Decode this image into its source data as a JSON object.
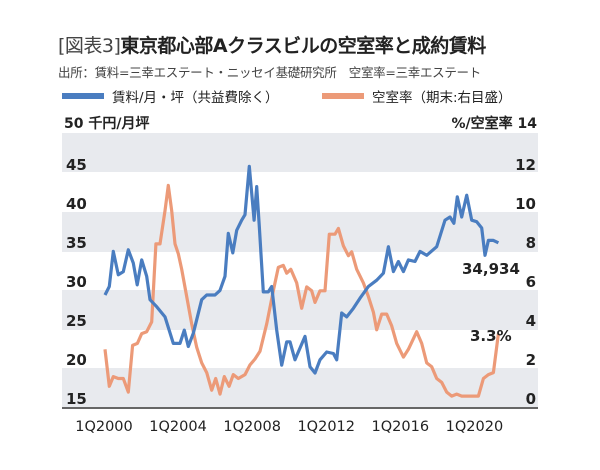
{
  "title_prefix": "[図表3]",
  "title": "東京都心部Aクラスビルの空室率と成約賃料",
  "source": "出所：賃料=三幸エステート・ニッセイ基礎研究所　空室率=三幸エステート",
  "chart_data": {
    "type": "line",
    "title": "東京都心部Aクラスビルの空室率と成約賃料",
    "ylabel_left": "50 千円/月坪",
    "ylabel_right": "%/空室率 14",
    "ylim_left": [
      15,
      50
    ],
    "ylim_right": [
      0,
      14
    ],
    "yticks_left": [
      "15",
      "20",
      "25",
      "30",
      "35",
      "40",
      "45"
    ],
    "yticks_right": [
      "0",
      "2",
      "4",
      "6",
      "8",
      "10",
      "12"
    ],
    "xticks": [
      "1Q2000",
      "1Q2004",
      "1Q2008",
      "1Q2012",
      "1Q2016",
      "1Q2020"
    ],
    "grid": "horizontal alternating bands",
    "legend_position": "top",
    "series": [
      {
        "name": "賃料/月・坪（共益費除く）",
        "axis": "left",
        "color": "#4a7dc0",
        "end_label": "34,934",
        "x": [
          2000.0,
          2000.23,
          2000.45,
          2000.72,
          2000.99,
          2001.26,
          2001.53,
          2001.74,
          2001.98,
          2002.25,
          2002.43,
          2002.79,
          2003.24,
          2003.69,
          2004.05,
          2004.28,
          2004.5,
          2004.77,
          2005.22,
          2005.49,
          2005.94,
          2006.21,
          2006.48,
          2006.66,
          2006.9,
          2007.11,
          2007.38,
          2007.56,
          2007.79,
          2008.05,
          2008.19,
          2008.33,
          2008.55,
          2008.82,
          2009.0,
          2009.27,
          2009.54,
          2009.81,
          2009.99,
          2010.26,
          2010.8,
          2011.07,
          2011.34,
          2011.61,
          2011.97,
          2012.33,
          2012.51,
          2012.78,
          2013.05,
          2013.41,
          2013.77,
          2014.22,
          2014.67,
          2015.03,
          2015.3,
          2015.57,
          2015.84,
          2016.11,
          2016.38,
          2016.74,
          2017.01,
          2017.37,
          2017.91,
          2018.36,
          2018.63,
          2018.84,
          2019.02,
          2019.26,
          2019.53,
          2019.8,
          2020.07,
          2020.34,
          2020.52,
          2020.7,
          2020.97,
          2021.24
        ],
        "values": [
          28.2,
          29.3,
          33.8,
          30.8,
          31.2,
          34.0,
          32.3,
          29.5,
          32.7,
          30.6,
          27.6,
          26.7,
          25.4,
          22.0,
          22.0,
          23.7,
          21.6,
          23.3,
          27.6,
          28.2,
          28.2,
          28.8,
          30.6,
          36.1,
          33.6,
          36.5,
          37.8,
          38.5,
          44.7,
          37.8,
          42.1,
          37.0,
          28.6,
          28.6,
          29.3,
          23.7,
          19.2,
          22.2,
          22.2,
          19.9,
          22.9,
          19.0,
          18.2,
          19.9,
          20.9,
          20.7,
          19.9,
          25.9,
          25.4,
          26.5,
          27.8,
          29.3,
          30.1,
          31.0,
          34.4,
          31.2,
          32.5,
          31.2,
          32.7,
          32.5,
          33.8,
          33.3,
          34.4,
          37.8,
          38.2,
          37.4,
          40.8,
          38.2,
          41.0,
          37.8,
          37.6,
          36.8,
          33.3,
          35.2,
          35.2,
          34.9
        ]
      },
      {
        "name": "空室率（期末:右目盛）",
        "axis": "right",
        "color": "#ec9a78",
        "end_label": "3.3%",
        "x": [
          2000.0,
          2000.23,
          2000.45,
          2000.72,
          2000.99,
          2001.26,
          2001.49,
          2001.75,
          2001.98,
          2002.25,
          2002.52,
          2002.75,
          2002.97,
          2003.24,
          2003.42,
          2003.6,
          2003.78,
          2003.96,
          2004.14,
          2004.41,
          2004.68,
          2004.95,
          2005.22,
          2005.49,
          2005.76,
          2005.98,
          2006.21,
          2006.44,
          2006.7,
          2006.93,
          2007.2,
          2007.56,
          2007.83,
          2008.1,
          2008.37,
          2008.73,
          2009.09,
          2009.36,
          2009.63,
          2009.81,
          2010.03,
          2010.35,
          2010.62,
          2010.89,
          2011.16,
          2011.34,
          2011.61,
          2011.88,
          2012.11,
          2012.42,
          2012.6,
          2012.87,
          2013.14,
          2013.32,
          2013.59,
          2013.95,
          2014.22,
          2014.49,
          2014.67,
          2014.94,
          2015.21,
          2015.48,
          2015.75,
          2016.11,
          2016.38,
          2016.83,
          2017.1,
          2017.37,
          2017.64,
          2017.91,
          2018.18,
          2018.45,
          2018.72,
          2018.99,
          2019.26,
          2019.53,
          2020.16,
          2020.43,
          2020.7,
          2020.97,
          2021.24
        ],
        "values": [
          2.5,
          0.6,
          1.1,
          1.0,
          1.0,
          0.3,
          2.7,
          2.8,
          3.3,
          3.4,
          3.9,
          7.9,
          7.9,
          9.6,
          10.9,
          9.6,
          7.9,
          7.4,
          6.6,
          5.2,
          3.8,
          2.6,
          1.8,
          1.3,
          0.4,
          1.0,
          0.2,
          1.1,
          0.6,
          1.2,
          1.0,
          1.2,
          1.7,
          2.0,
          2.4,
          3.8,
          5.5,
          6.7,
          6.8,
          6.4,
          6.6,
          5.9,
          4.6,
          5.7,
          5.5,
          4.9,
          5.5,
          5.5,
          8.4,
          8.4,
          8.7,
          7.8,
          7.3,
          7.5,
          6.6,
          5.9,
          5.2,
          4.4,
          3.5,
          4.3,
          4.3,
          3.7,
          2.8,
          2.1,
          2.5,
          3.4,
          2.8,
          1.8,
          1.6,
          1.0,
          0.8,
          0.3,
          0.1,
          0.2,
          0.1,
          0.1,
          0.1,
          1.0,
          1.2,
          1.3,
          3.3
        ]
      }
    ]
  }
}
